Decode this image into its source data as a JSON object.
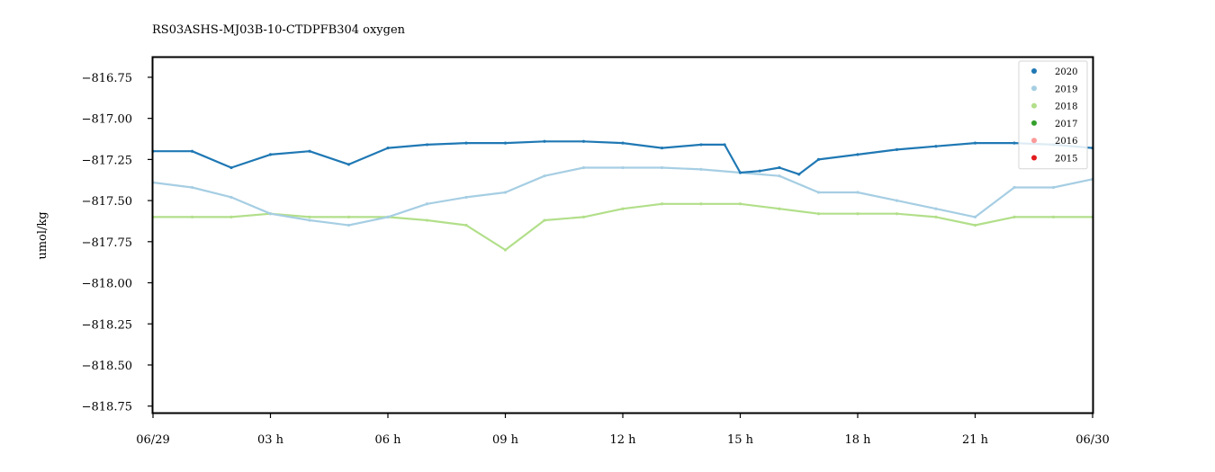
{
  "chart_data": {
    "type": "scatter",
    "title": "RS03ASHS-MJ03B-10-CTDPFB304 oxygen",
    "xlabel": "",
    "ylabel": "umol/kg",
    "xlim": [
      "06/29 00:00",
      "06/30 00:00"
    ],
    "ylim": [
      -818.79,
      -816.63
    ],
    "x_ticks": [
      {
        "hour": 0,
        "label": "06/29"
      },
      {
        "hour": 3,
        "label": "03 h"
      },
      {
        "hour": 6,
        "label": "06 h"
      },
      {
        "hour": 9,
        "label": "09 h"
      },
      {
        "hour": 12,
        "label": "12 h"
      },
      {
        "hour": 15,
        "label": "15 h"
      },
      {
        "hour": 18,
        "label": "18 h"
      },
      {
        "hour": 21,
        "label": "21 h"
      },
      {
        "hour": 24,
        "label": "06/30"
      }
    ],
    "y_ticks": [
      {
        "value": -816.75,
        "label": "−816.75"
      },
      {
        "value": -817.0,
        "label": "−817.00"
      },
      {
        "value": -817.25,
        "label": "−817.25"
      },
      {
        "value": -817.5,
        "label": "−817.50"
      },
      {
        "value": -817.75,
        "label": "−817.75"
      },
      {
        "value": -818.0,
        "label": "−818.00"
      },
      {
        "value": -818.25,
        "label": "−818.25"
      },
      {
        "value": -818.5,
        "label": "−818.50"
      },
      {
        "value": -818.75,
        "label": "−818.75"
      }
    ],
    "grid": false,
    "legend_position": "top-right",
    "series": [
      {
        "name": "2020",
        "color": "#1f78b4",
        "x_hours": [
          0,
          1,
          2,
          3,
          4,
          5,
          6,
          7,
          8,
          9,
          10,
          11,
          12,
          13,
          14,
          14.6,
          15,
          15.5,
          16,
          16.5,
          17,
          18,
          19,
          20,
          21,
          22,
          23,
          24
        ],
        "y": [
          -817.2,
          -817.2,
          -817.3,
          -817.22,
          -817.2,
          -817.28,
          -817.18,
          -817.16,
          -817.15,
          -817.15,
          -817.14,
          -817.14,
          -817.15,
          -817.18,
          -817.16,
          -817.16,
          -817.33,
          -817.32,
          -817.3,
          -817.34,
          -817.25,
          -817.22,
          -817.19,
          -817.17,
          -817.15,
          -817.15,
          -817.16,
          -817.18
        ]
      },
      {
        "name": "2019",
        "color": "#a6cee3",
        "x_hours": [
          0,
          1,
          2,
          3,
          4,
          5,
          6,
          7,
          8,
          9,
          10,
          11,
          12,
          13,
          14,
          15,
          16,
          17,
          18,
          19,
          20,
          21,
          22,
          23,
          24
        ],
        "y": [
          -817.39,
          -817.42,
          -817.48,
          -817.58,
          -817.62,
          -817.65,
          -817.6,
          -817.52,
          -817.48,
          -817.45,
          -817.35,
          -817.3,
          -817.3,
          -817.3,
          -817.31,
          -817.33,
          -817.35,
          -817.45,
          -817.45,
          -817.5,
          -817.55,
          -817.6,
          -817.42,
          -817.42,
          -817.37
        ]
      },
      {
        "name": "2018",
        "color": "#b2df8a",
        "x_hours": [
          0,
          1,
          2,
          3,
          4,
          5,
          6,
          7,
          8,
          9,
          10,
          11,
          12,
          13,
          14,
          15,
          16,
          17,
          18,
          19,
          20,
          21,
          22,
          23,
          24
        ],
        "y": [
          -817.6,
          -817.6,
          -817.6,
          -817.58,
          -817.6,
          -817.6,
          -817.6,
          -817.62,
          -817.65,
          -817.8,
          -817.62,
          -817.6,
          -817.55,
          -817.52,
          -817.52,
          -817.52,
          -817.55,
          -817.58,
          -817.58,
          -817.58,
          -817.6,
          -817.65,
          -817.6,
          -817.6,
          -817.6
        ]
      },
      {
        "name": "2017",
        "color": "#33a02c",
        "x_hours": [],
        "y": []
      },
      {
        "name": "2016",
        "color": "#fb9a99",
        "x_hours": [],
        "y": []
      },
      {
        "name": "2015",
        "color": "#e31a1c",
        "x_hours": [],
        "y": []
      }
    ]
  }
}
